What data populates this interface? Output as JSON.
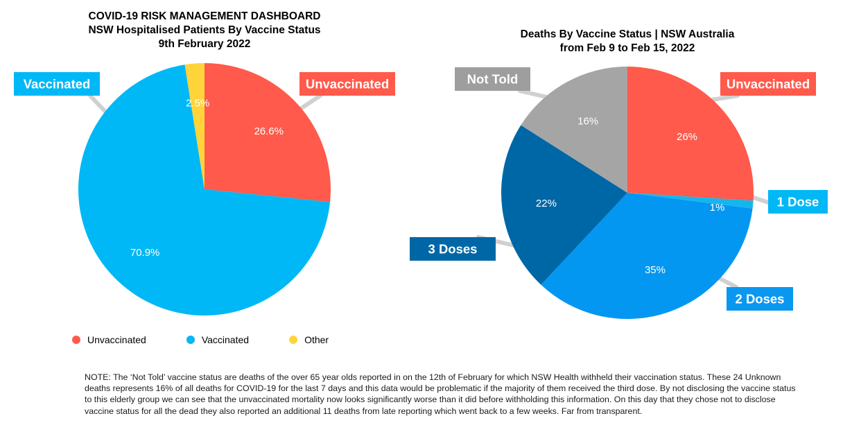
{
  "note": "NOTE: The ‘Not Told’ vaccine status are deaths of the over 65 year olds reported in on the 12th of February for which NSW Health withheld their vaccination status. These 24 Unknown deaths represents 16% of all deaths for COVID-19 for the last 7 days and this data would be problematic if the majority of them received the third dose. By not disclosing the vaccine status to this elderly group we can see that the unvaccinated mortality now looks significantly worse than it did before withholding this information. On this day that they chose not to disclose vaccine status for all the dead they also reported an additional 11 deaths from late reporting which went back to a few weeks. Far from transparent.",
  "chart_data": [
    {
      "type": "pie",
      "title": "COVID-19 RISK MANAGEMENT DASHBOARD",
      "subtitle": "NSW Hospitalised Patients By Vaccine Status",
      "date": "9th February 2022",
      "legend": "bottom",
      "slices": [
        {
          "label": "Unvaccinated",
          "value": 26.6,
          "text": "26.6%",
          "color": "#ff5a4b",
          "callout": true
        },
        {
          "label": "Vaccinated",
          "value": 70.9,
          "text": "70.9%",
          "color": "#00b8f5",
          "callout": true
        },
        {
          "label": "Other",
          "value": 2.5,
          "text": "2.5%",
          "color": "#ffd43b",
          "callout": false
        }
      ]
    },
    {
      "type": "pie",
      "title": "Deaths By Vaccine Status | NSW Australia",
      "subtitle": "from Feb 9 to Feb 15, 2022",
      "slices": [
        {
          "label": "Unvaccinated",
          "value": 26,
          "text": "26%",
          "color": "#ff5a4b",
          "callout_color": "#ff5a4b"
        },
        {
          "label": "1 Dose",
          "value": 1,
          "text": "1%",
          "color": "#15b6ee",
          "callout_color": "#00b8f5"
        },
        {
          "label": "2 Doses",
          "value": 35,
          "text": "35%",
          "color": "#0397f2",
          "callout_color": "#0a97f0"
        },
        {
          "label": "3 Doses",
          "value": 22,
          "text": "22%",
          "color": "#0067a6",
          "callout_color": "#0067a6"
        },
        {
          "label": "Not Told",
          "value": 16,
          "text": "16%",
          "color": "#a5a5a5",
          "callout_color": "#9e9e9e"
        }
      ]
    }
  ]
}
